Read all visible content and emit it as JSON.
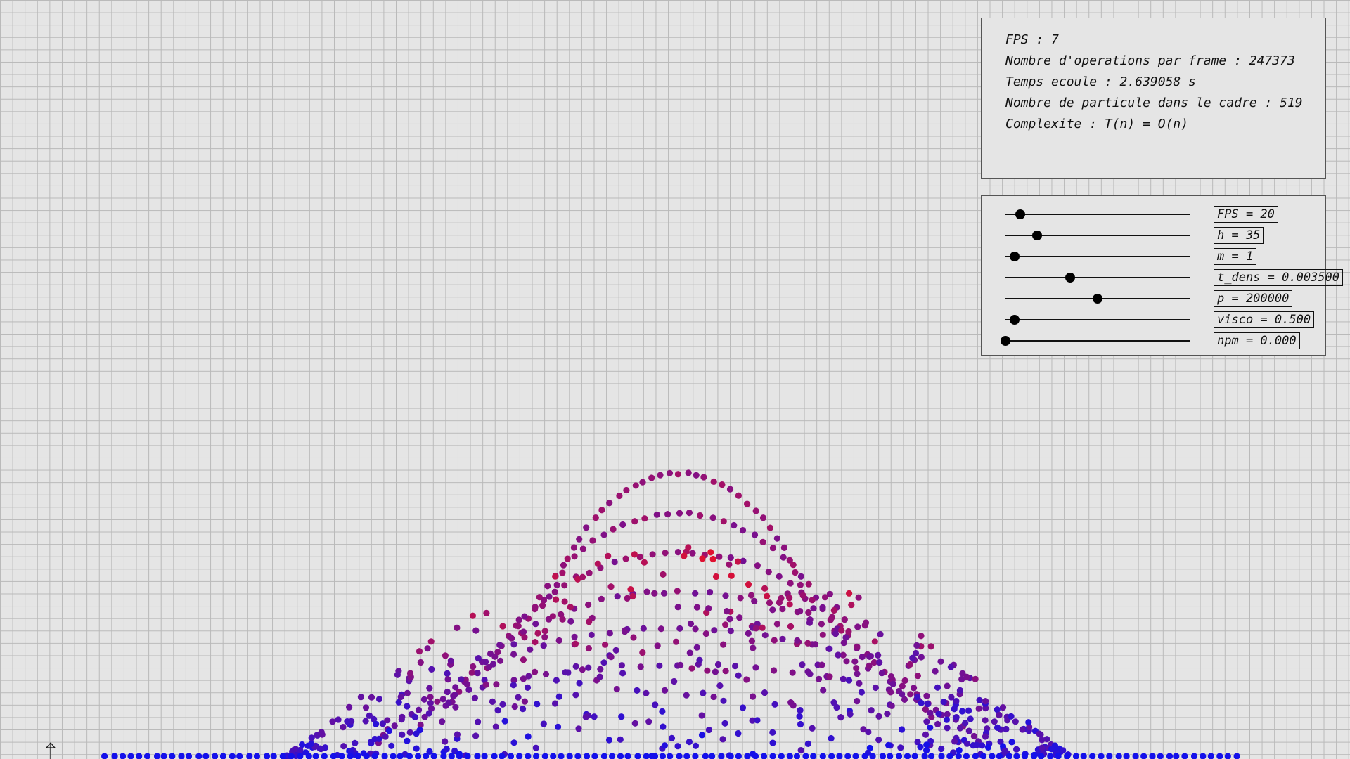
{
  "stats": {
    "fps": "FPS : 7",
    "operations": "Nombre d'operations par frame : 247373",
    "elapsed": "Temps ecoule : 2.639058 s",
    "particle_count": "Nombre de particule dans le cadre : 519",
    "complexity": "Complexite : T(n) = O(n)"
  },
  "controls": {
    "sliders": [
      {
        "key": "fps",
        "label": "FPS = 20",
        "level": 0.08
      },
      {
        "key": "h",
        "label": "h = 35",
        "level": 0.17
      },
      {
        "key": "m",
        "label": "m = 1",
        "level": 0.05
      },
      {
        "key": "t_dens",
        "label": "t_dens = 0.003500",
        "level": 0.35
      },
      {
        "key": "p",
        "label": "p = 200000",
        "level": 0.5
      },
      {
        "key": "visco",
        "label": "visco = 0.500",
        "level": 0.05
      },
      {
        "key": "npm",
        "label": "npm = 0.000",
        "level": 0.0
      }
    ]
  },
  "colors": {
    "background": "#e5e5e5",
    "grid": "#b9b9b9",
    "particle_low": "#1010ee",
    "particle_high": "#e01030",
    "knob": "#000000"
  },
  "icons": {
    "axis_marker": "up-arrow-icon"
  }
}
